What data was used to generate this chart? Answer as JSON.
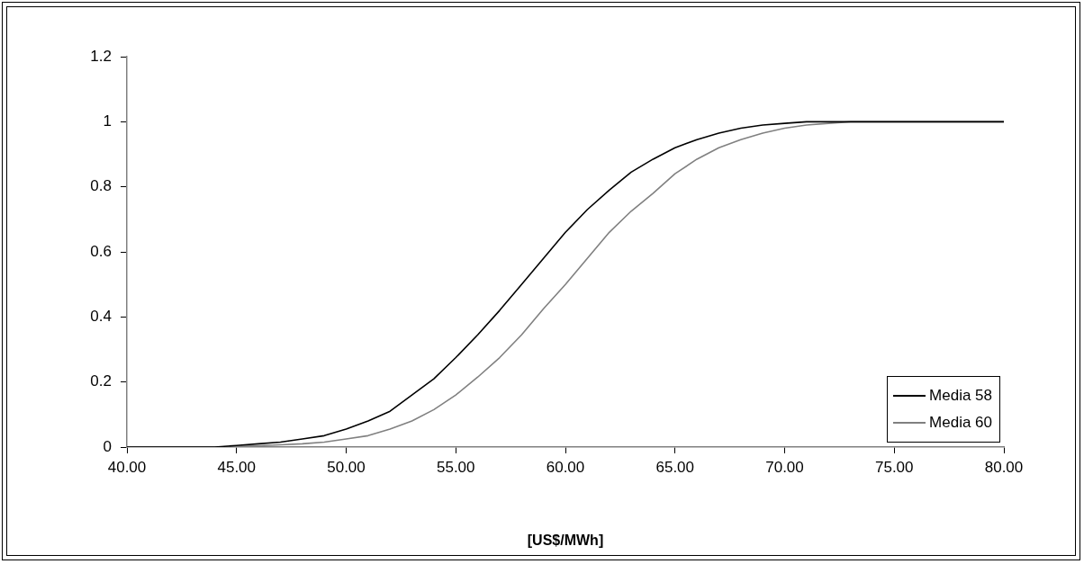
{
  "chart_data": {
    "type": "line",
    "xlabel": "[US$/MWh]",
    "x": [
      40,
      41,
      42,
      43,
      44,
      45,
      46,
      47,
      48,
      49,
      50,
      51,
      52,
      53,
      54,
      55,
      56,
      57,
      58,
      59,
      60,
      61,
      62,
      63,
      64,
      65,
      66,
      67,
      68,
      69,
      70,
      71,
      72,
      73,
      74,
      75,
      76,
      77,
      78,
      79,
      80
    ],
    "series": [
      {
        "name": "Media 58",
        "color": "#000000",
        "values": [
          0,
          0,
          0,
          0,
          0,
          0.005,
          0.01,
          0.015,
          0.025,
          0.035,
          0.055,
          0.08,
          0.11,
          0.16,
          0.21,
          0.275,
          0.345,
          0.42,
          0.5,
          0.58,
          0.66,
          0.73,
          0.79,
          0.845,
          0.885,
          0.92,
          0.945,
          0.965,
          0.98,
          0.99,
          0.995,
          1,
          1,
          1,
          1,
          1,
          1,
          1,
          1,
          1,
          1
        ]
      },
      {
        "name": "Media 60",
        "color": "#808080",
        "values": [
          0,
          0,
          0,
          0,
          0,
          0.002,
          0.004,
          0.007,
          0.01,
          0.015,
          0.025,
          0.035,
          0.055,
          0.08,
          0.115,
          0.16,
          0.215,
          0.275,
          0.345,
          0.425,
          0.5,
          0.58,
          0.66,
          0.725,
          0.78,
          0.84,
          0.885,
          0.92,
          0.945,
          0.965,
          0.98,
          0.99,
          0.995,
          1,
          1,
          1,
          1,
          1,
          1,
          1,
          1
        ]
      }
    ],
    "xlim": [
      40,
      80
    ],
    "xticks": [
      {
        "value": 40,
        "label": "40.00"
      },
      {
        "value": 45,
        "label": "45.00"
      },
      {
        "value": 50,
        "label": "50.00"
      },
      {
        "value": 55,
        "label": "55.00"
      },
      {
        "value": 60,
        "label": "60.00"
      },
      {
        "value": 65,
        "label": "65.00"
      },
      {
        "value": 70,
        "label": "70.00"
      },
      {
        "value": 75,
        "label": "75.00"
      },
      {
        "value": 80,
        "label": "80.00"
      }
    ],
    "ylim": [
      0,
      1.2
    ],
    "yticks": [
      0,
      0.2,
      0.4,
      0.6,
      0.8,
      1,
      1.2
    ],
    "grid": false,
    "legend": "bottom right",
    "marker": "none",
    "line_style": "solid"
  }
}
